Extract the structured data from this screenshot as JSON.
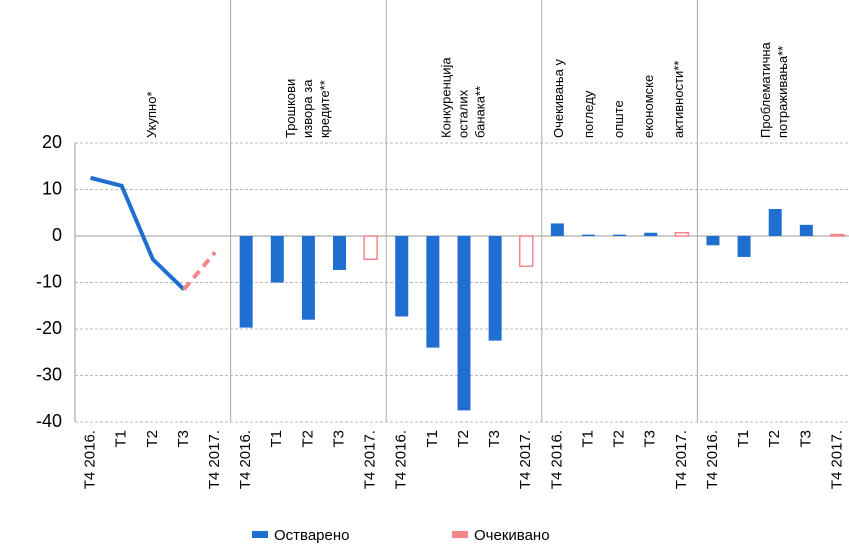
{
  "chart_data": {
    "type": "panels",
    "ylim": [
      -40,
      20
    ],
    "yticks": [
      -40,
      -30,
      -20,
      -10,
      0,
      10,
      20
    ],
    "grid": true,
    "legend": [
      {
        "name": "Остварено",
        "color": "#1f6fd1"
      },
      {
        "name": "Очекивано",
        "color": "#f4868a"
      }
    ],
    "panels": [
      {
        "type": "line",
        "title": [
          "Укупно*"
        ],
        "categories": [
          "T4 2016.",
          "T1",
          "T2",
          "T3",
          "T4 2017."
        ],
        "series": [
          {
            "values": [
              12.5,
              10.8,
              -5,
              -11.5,
              null
            ]
          },
          {
            "values": [
              null,
              null,
              null,
              -11.5,
              -3.5
            ]
          }
        ]
      },
      {
        "type": "bar",
        "title": [
          "Трошкови",
          "извора за",
          "кредите**"
        ],
        "categories": [
          "T4 2016.",
          "T1",
          "T2",
          "T3",
          "T4 2017."
        ],
        "series": [
          {
            "values": [
              -19.7,
              -10,
              -18,
              -7.3,
              null
            ]
          },
          {
            "values": [
              null,
              null,
              null,
              null,
              -5
            ]
          }
        ]
      },
      {
        "type": "bar",
        "title": [
          "Конкуренција",
          "осталих",
          "банака**"
        ],
        "categories": [
          "T4 2016.",
          "T1",
          "T2",
          "T3",
          "T4 2017."
        ],
        "series": [
          {
            "values": [
              -17.3,
              -24,
              -37.5,
              -22.5,
              null
            ]
          },
          {
            "values": [
              null,
              null,
              null,
              null,
              -6.5
            ]
          }
        ]
      },
      {
        "type": "bar",
        "title": [
          "Очекивања у",
          "погледу",
          "опште",
          "економске",
          "активности**"
        ],
        "categories": [
          "T4 2016.",
          "T1",
          "T2",
          "T3",
          "T4 2017."
        ],
        "series": [
          {
            "values": [
              2.7,
              0.3,
              0.3,
              0.7,
              null
            ]
          },
          {
            "values": [
              null,
              null,
              null,
              null,
              0.7
            ]
          }
        ]
      },
      {
        "type": "bar",
        "title": [
          "Проблематична",
          "потраживања**"
        ],
        "categories": [
          "T4 2016.",
          "T1",
          "T2",
          "T3",
          "T4 2017."
        ],
        "series": [
          {
            "values": [
              -2,
              -4.5,
              5.8,
              2.4,
              null
            ]
          },
          {
            "values": [
              null,
              null,
              null,
              null,
              0.3
            ]
          }
        ]
      }
    ]
  }
}
